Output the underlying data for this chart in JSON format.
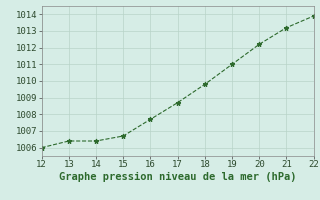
{
  "x": [
    12,
    13,
    14,
    15,
    16,
    17,
    18,
    19,
    20,
    21,
    22
  ],
  "y": [
    1006.0,
    1006.4,
    1006.4,
    1006.7,
    1007.7,
    1008.7,
    1009.8,
    1011.0,
    1012.2,
    1013.2,
    1013.9
  ],
  "xlim": [
    12,
    22
  ],
  "ylim": [
    1005.5,
    1014.5
  ],
  "xticks": [
    12,
    13,
    14,
    15,
    16,
    17,
    18,
    19,
    20,
    21,
    22
  ],
  "yticks": [
    1006,
    1007,
    1008,
    1009,
    1010,
    1011,
    1012,
    1013,
    1014
  ],
  "xlabel": "Graphe pression niveau de la mer (hPa)",
  "line_color": "#2d6a2d",
  "marker": "*",
  "marker_color": "#2d6a2d",
  "bg_color": "#d6ede6",
  "grid_color": "#b8d4c8",
  "tick_label_fontsize": 6.5,
  "xlabel_fontsize": 7.5
}
